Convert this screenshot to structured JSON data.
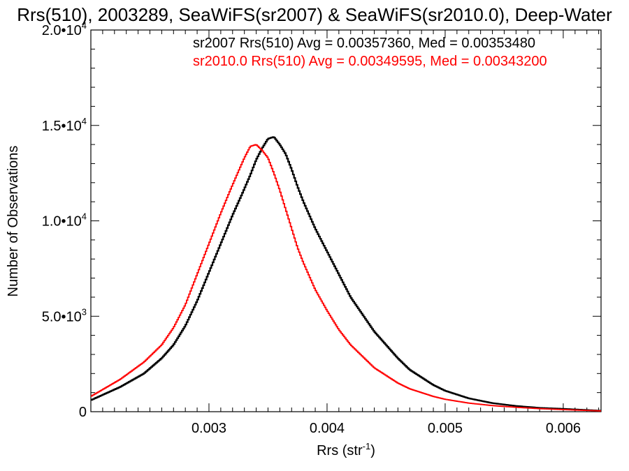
{
  "chart_data": {
    "type": "line",
    "title": "Rrs(510), 2003289, SeaWiFS(sr2007) & SeaWiFS(sr2010.0), Deep-Water",
    "xlabel": "Rrs (str",
    "xlabel_sup": "-1",
    "xlabel_close": ")",
    "ylabel": "Number of Observations",
    "xlim": [
      0.002,
      0.00632
    ],
    "ylim": [
      0,
      20000
    ],
    "x_ticks": [
      {
        "value": 0.003,
        "label": "0.003"
      },
      {
        "value": 0.004,
        "label": "0.004"
      },
      {
        "value": 0.005,
        "label": "0.005"
      },
      {
        "value": 0.006,
        "label": "0.006"
      }
    ],
    "y_ticks": [
      {
        "value": 0,
        "label": "0",
        "exp": ""
      },
      {
        "value": 5000,
        "label": "5.0•10",
        "exp": "3"
      },
      {
        "value": 10000,
        "label": "1.0•10",
        "exp": "4"
      },
      {
        "value": 15000,
        "label": "1.5•10",
        "exp": "4"
      },
      {
        "value": 20000,
        "label": "2.0•10",
        "exp": "4"
      }
    ],
    "annotations": [
      {
        "text": "sr2007 Rrs(510) Avg = 0.00357360, Med = 0.00353480",
        "color": "#000000"
      },
      {
        "text": "sr2010.0 Rrs(510) Avg = 0.00349595, Med = 0.00343200",
        "color": "#ff0000"
      }
    ],
    "series": [
      {
        "color": "#000000",
        "x": [
          0.002,
          0.00225,
          0.00245,
          0.0026,
          0.0027,
          0.0028,
          0.0029,
          0.003,
          0.0031,
          0.0032,
          0.00328,
          0.00335,
          0.0034,
          0.00345,
          0.0035,
          0.00355,
          0.0036,
          0.00365,
          0.0037,
          0.00375,
          0.0038,
          0.0039,
          0.004,
          0.0041,
          0.0042,
          0.0043,
          0.0044,
          0.0045,
          0.0046,
          0.0047,
          0.0048,
          0.0049,
          0.005,
          0.0052,
          0.0054,
          0.0056,
          0.0058,
          0.006,
          0.00632
        ],
        "y": [
          600,
          1300,
          2000,
          2800,
          3500,
          4500,
          5800,
          7300,
          8800,
          10300,
          11400,
          12400,
          13200,
          13800,
          14300,
          14400,
          14000,
          13500,
          12700,
          11800,
          11000,
          9600,
          8400,
          7200,
          6000,
          5100,
          4200,
          3500,
          2800,
          2200,
          1800,
          1400,
          1100,
          700,
          450,
          300,
          200,
          150,
          50
        ]
      },
      {
        "color": "#ff0000",
        "x": [
          0.002,
          0.00225,
          0.00245,
          0.0026,
          0.0027,
          0.0028,
          0.0029,
          0.003,
          0.0031,
          0.00318,
          0.00325,
          0.0033,
          0.00335,
          0.0034,
          0.00345,
          0.0035,
          0.00355,
          0.0036,
          0.00365,
          0.0037,
          0.00375,
          0.0038,
          0.0039,
          0.004,
          0.0041,
          0.0042,
          0.0043,
          0.0044,
          0.0045,
          0.0046,
          0.0047,
          0.0048,
          0.0049,
          0.005,
          0.0052,
          0.0054,
          0.0056,
          0.0058,
          0.006,
          0.00632
        ],
        "y": [
          800,
          1700,
          2600,
          3500,
          4400,
          5600,
          7200,
          8800,
          10400,
          11600,
          12600,
          13300,
          13900,
          14000,
          13700,
          13300,
          12500,
          11600,
          10600,
          9600,
          8600,
          7800,
          6400,
          5300,
          4300,
          3500,
          2900,
          2300,
          1900,
          1500,
          1200,
          1000,
          800,
          650,
          450,
          320,
          230,
          160,
          110,
          40
        ]
      }
    ]
  }
}
